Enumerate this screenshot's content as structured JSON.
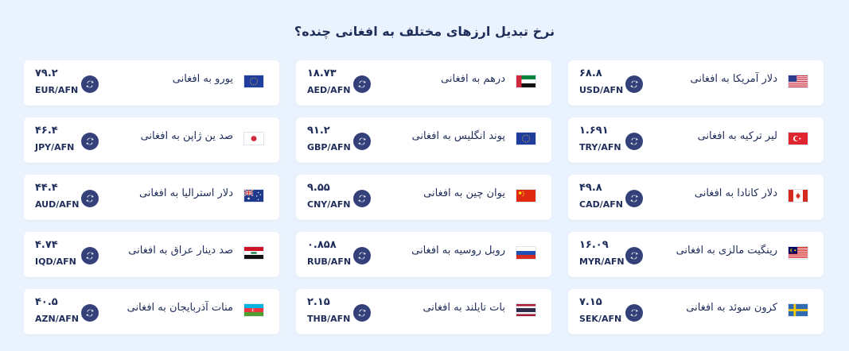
{
  "page": {
    "title": "نرخ تبدیل ارزهای مختلف به افغانی چنده؟"
  },
  "cards": [
    {
      "name": "دلار آمریکا به افغانی",
      "rate": "۶۸.۸",
      "pair": "USD/AFN",
      "flag": "us-flag-icon"
    },
    {
      "name": "درهم به افغانی",
      "rate": "۱۸.۷۳",
      "pair": "AED/AFN",
      "flag": "uae-flag-icon"
    },
    {
      "name": "یورو به افغانی",
      "rate": "۷۹.۲",
      "pair": "EUR/AFN",
      "flag": "eu-flag-icon"
    },
    {
      "name": "لیر ترکیه به افغانی",
      "rate": "۱.۶۹۱",
      "pair": "TRY/AFN",
      "flag": "turkey-flag-icon"
    },
    {
      "name": "پوند انگلیس به افغانی",
      "rate": "۹۱.۲",
      "pair": "GBP/AFN",
      "flag": "eu-flag-icon"
    },
    {
      "name": "صد ین ژاپن به افغانی",
      "rate": "۴۶.۴",
      "pair": "JPY/AFN",
      "flag": "japan-flag-icon"
    },
    {
      "name": "دلار کانادا به افغانی",
      "rate": "۴۹.۸",
      "pair": "CAD/AFN",
      "flag": "canada-flag-icon"
    },
    {
      "name": "یوان چین به افغانی",
      "rate": "۹.۵۵",
      "pair": "CNY/AFN",
      "flag": "china-flag-icon"
    },
    {
      "name": "دلار استرالیا به افغانی",
      "rate": "۴۴.۴",
      "pair": "AUD/AFN",
      "flag": "australia-flag-icon"
    },
    {
      "name": "رینگیت مالزی به افغانی",
      "rate": "۱۶.۰۹",
      "pair": "MYR/AFN",
      "flag": "malaysia-flag-icon"
    },
    {
      "name": "روبل روسیه به افغانی",
      "rate": "۰.۸۵۸",
      "pair": "RUB/AFN",
      "flag": "russia-flag-icon"
    },
    {
      "name": "صد دینار عراق به افغانی",
      "rate": "۴.۷۴",
      "pair": "IQD/AFN",
      "flag": "iraq-flag-icon"
    },
    {
      "name": "کرون سوئد به افغانی",
      "rate": "۷.۱۵",
      "pair": "SEK/AFN",
      "flag": "sweden-flag-icon"
    },
    {
      "name": "بات تایلند به افغانی",
      "rate": "۲.۱۵",
      "pair": "THB/AFN",
      "flag": "thailand-flag-icon"
    },
    {
      "name": "منات آذربایجان به افغانی",
      "rate": "۴۰.۵",
      "pair": "AZN/AFN",
      "flag": "azerbaijan-flag-icon"
    }
  ],
  "colors": {
    "background": "#eaf3fd",
    "card": "#ffffff",
    "text": "#1f2d5a",
    "icon": "#33407a"
  }
}
